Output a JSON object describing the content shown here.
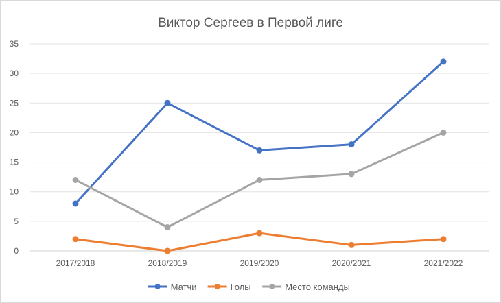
{
  "chart_data": {
    "type": "line",
    "title": "Виктор Сергеев в Первой лиге",
    "xlabel": "",
    "ylabel": "",
    "categories": [
      "2017/2018",
      "2018/2019",
      "2019/2020",
      "2020/2021",
      "2021/2022"
    ],
    "ylim": [
      0,
      35
    ],
    "yticks": [
      0,
      5,
      10,
      15,
      20,
      25,
      30,
      35
    ],
    "grid": true,
    "legend": "bottom",
    "series": [
      {
        "name": "Матчи",
        "values": [
          8,
          25,
          17,
          18,
          32
        ],
        "color": "#4472c4"
      },
      {
        "name": "Голы",
        "values": [
          2,
          0,
          3,
          1,
          2
        ],
        "color": "#ed7d31"
      },
      {
        "name": "Место команды",
        "values": [
          12,
          4,
          12,
          13,
          20
        ],
        "color": "#a5a5a5"
      }
    ]
  }
}
